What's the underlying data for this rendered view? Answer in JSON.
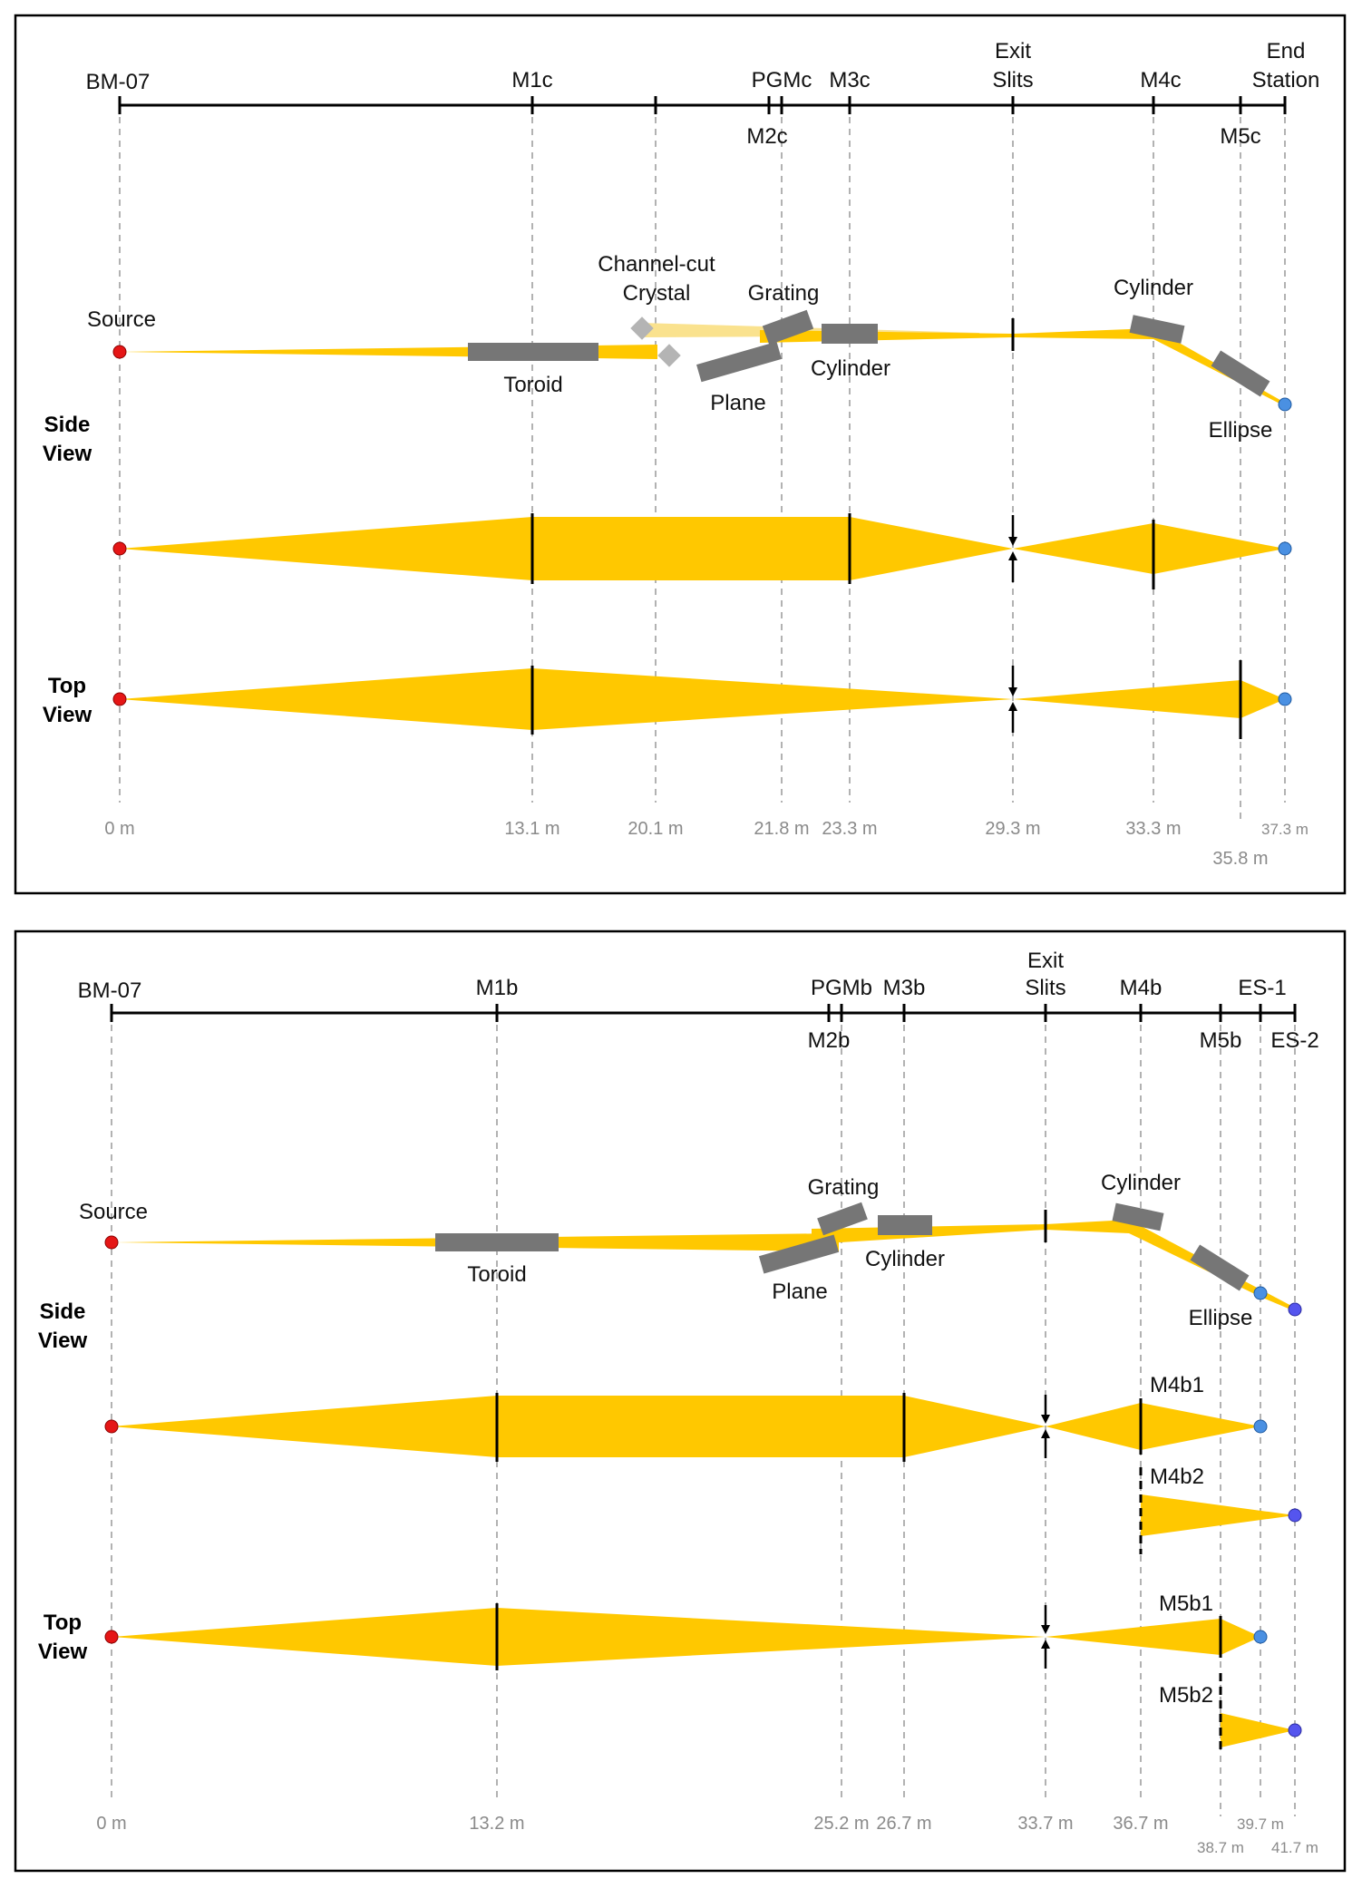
{
  "colors": {
    "beam": "#FFC800",
    "beam_light": "#FAE28E",
    "mirror": "#767676",
    "mirror_light": "#B4B4B4",
    "source": "#E51616",
    "endpoint": "#4A90E2",
    "endpoint2": "#5555EE",
    "guide": "#999999",
    "axis": "#000000"
  },
  "panel_c": {
    "beamline": "BM-07",
    "top_labels": [
      "M1c",
      "PGMc",
      "M3c",
      "Exit",
      "Slits",
      "M4c",
      "End",
      "Station"
    ],
    "bottom_labels": [
      "M2c",
      "M5c"
    ],
    "side_view_labels": [
      "Source",
      "Channel-cut",
      "Crystal",
      "Grating",
      "Cylinder",
      "Toroid",
      "Plane",
      "Cylinder",
      "Ellipse"
    ],
    "view_labels": {
      "side": [
        "Side",
        "View"
      ],
      "top": [
        "Top",
        "View"
      ]
    },
    "distances": [
      "0 m",
      "13.1 m",
      "20.1 m",
      "21.8 m",
      "23.3 m",
      "29.3 m",
      "33.3 m",
      "37.3 m",
      "35.8 m"
    ]
  },
  "panel_b": {
    "beamline": "BM-07",
    "top_labels": [
      "M1b",
      "PGMb",
      "M3b",
      "Exit",
      "Slits",
      "M4b",
      "ES-1"
    ],
    "bottom_labels": [
      "M2b",
      "M5b",
      "ES-2"
    ],
    "side_view_labels": [
      "Source",
      "Grating",
      "Cylinder",
      "Toroid",
      "Plane",
      "Cylinder",
      "Ellipse"
    ],
    "branch_labels": [
      "M4b1",
      "M4b2",
      "M5b1",
      "M5b2"
    ],
    "view_labels": {
      "side": [
        "Side",
        "View"
      ],
      "top": [
        "Top",
        "View"
      ]
    },
    "distances": [
      "0 m",
      "13.2 m",
      "25.2 m",
      "26.7 m",
      "33.7 m",
      "36.7 m",
      "39.7 m",
      "38.7 m",
      "41.7 m"
    ]
  }
}
